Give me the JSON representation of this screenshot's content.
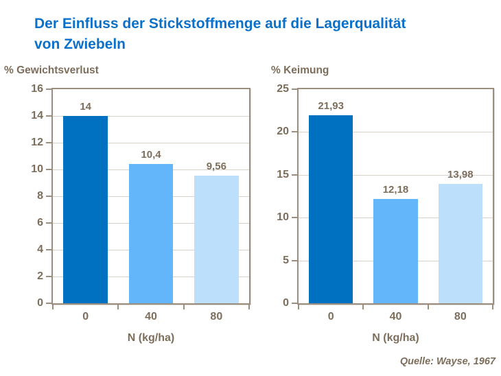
{
  "title": {
    "line1": "Der Einfluss der Stickstoffmenge auf die Lagerqualität",
    "line2": "von Zwiebeln"
  },
  "source": "Quelle: Wayse, 1967",
  "colors": {
    "title_blue": "#0b70c9",
    "text_taupe": "#7d6e5c",
    "axis_taupe": "#9b8e7e",
    "gridline_gray": "#d6d1ca",
    "bar_dark_blue": "#0070c0",
    "bar_medium_blue": "#63b6fa",
    "bar_light_blue": "#bcdffb"
  },
  "chart_data": [
    {
      "type": "bar",
      "title": "% Gewichtsverlust",
      "ylabel": "% Gewichtsverlust",
      "xlabel": "N (kg/ha)",
      "categories": [
        "0",
        "40",
        "80"
      ],
      "values": [
        14,
        10.4,
        9.56
      ],
      "value_labels": [
        "14",
        "10,4",
        "9,56"
      ],
      "ylim": [
        0,
        16
      ],
      "yticks": [
        0,
        2,
        4,
        6,
        8,
        10,
        12,
        14,
        16
      ],
      "grid": true,
      "legend": "none",
      "bar_colors": [
        "#0070c0",
        "#63b6fa",
        "#bcdffb"
      ]
    },
    {
      "type": "bar",
      "title": "% Keimung",
      "ylabel": "% Keimung",
      "xlabel": "N (kg/ha)",
      "categories": [
        "0",
        "40",
        "80"
      ],
      "values": [
        21.93,
        12.18,
        13.98
      ],
      "value_labels": [
        "21,93",
        "12,18",
        "13,98"
      ],
      "ylim": [
        0,
        25
      ],
      "yticks": [
        0,
        5,
        10,
        15,
        20,
        25
      ],
      "grid": true,
      "legend": "none",
      "bar_colors": [
        "#0070c0",
        "#63b6fa",
        "#bcdffb"
      ]
    }
  ]
}
